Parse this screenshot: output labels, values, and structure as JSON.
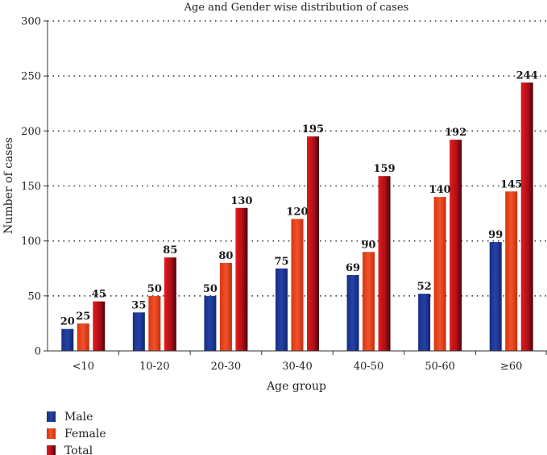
{
  "chart_data": {
    "type": "bar",
    "title": "Age and Gender wise distribution of cases",
    "xlabel": "Age group",
    "ylabel": "Number of cases",
    "ylim": [
      0,
      300
    ],
    "yticks": [
      "0",
      "50",
      "100",
      "150",
      "200",
      "250",
      "300"
    ],
    "grid": "horizontal dotted",
    "legend": "bottom-left",
    "categories": [
      "<10",
      "10-20",
      "20-30",
      "30-40",
      "40-50",
      "50-60",
      "≥60"
    ],
    "series": [
      {
        "name": "Male",
        "values": [
          20,
          35,
          50,
          75,
          69,
          52,
          99
        ],
        "color": "#1f3a93"
      },
      {
        "name": "Female",
        "values": [
          25,
          50,
          80,
          120,
          90,
          140,
          145
        ],
        "color": "#e2401c"
      },
      {
        "name": "Total",
        "values": [
          45,
          85,
          130,
          195,
          159,
          192,
          244
        ],
        "color": "#c8102e"
      }
    ]
  }
}
